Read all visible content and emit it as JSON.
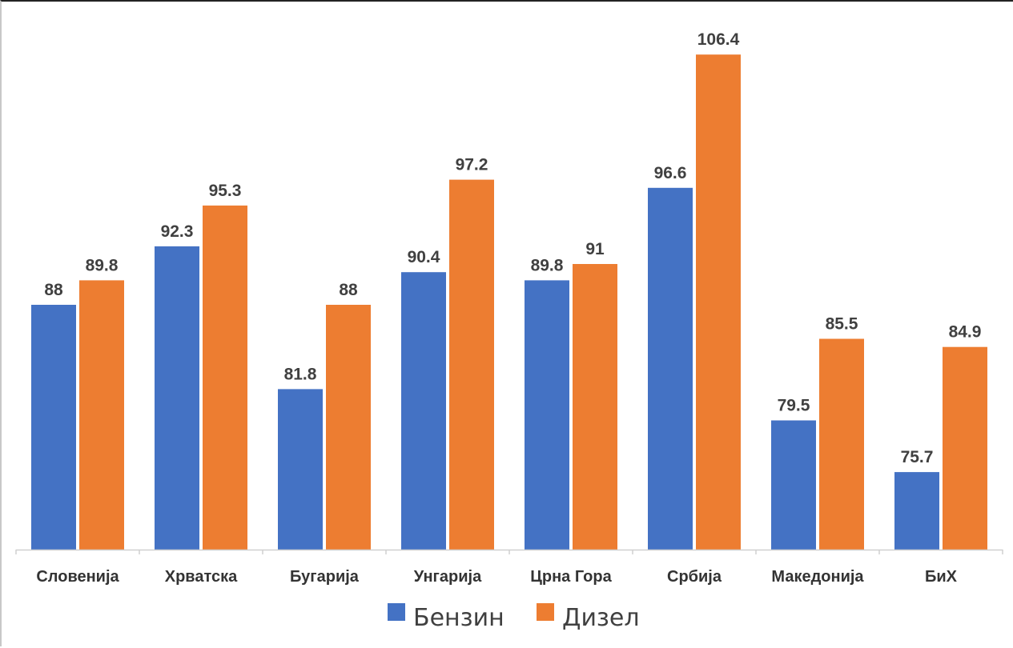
{
  "chart_data": {
    "type": "bar",
    "title": "",
    "xlabel": "",
    "ylabel": "",
    "ylim": [
      70,
      110
    ],
    "grid": false,
    "legend_position": "bottom",
    "categories": [
      "Словенија",
      "Хрватска",
      "Бугарија",
      "Унгарија",
      "Црна Гора",
      "Србија",
      "Македонија",
      "БиХ"
    ],
    "series": [
      {
        "name": "Бензин",
        "color": "#4472C4",
        "values": [
          88,
          92.3,
          81.8,
          90.4,
          89.8,
          96.6,
          79.5,
          75.7
        ]
      },
      {
        "name": "Дизел",
        "color": "#ED7D31",
        "values": [
          89.8,
          95.3,
          88,
          97.2,
          91,
          106.4,
          85.5,
          84.9
        ]
      }
    ]
  }
}
